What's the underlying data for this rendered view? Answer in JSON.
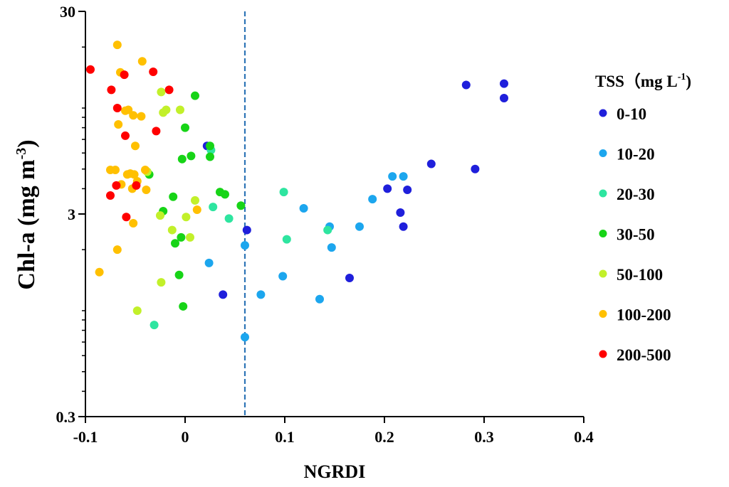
{
  "chart_data": {
    "type": "scatter",
    "title": "",
    "xlabel": "NGRDI",
    "ylabel_main": "Chl-a (mg m",
    "ylabel_sup": "-3",
    "ylabel_close": ")",
    "ylabel": "Chl-a (mg m-3)",
    "xlim": [
      -0.1,
      0.4
    ],
    "ylim": [
      0.3,
      30
    ],
    "yscale": "log",
    "x_ticks": [
      -0.1,
      0,
      0.1,
      0.2,
      0.3,
      0.4
    ],
    "x_tick_labels": [
      "-0.1",
      "0",
      "0.1",
      "0.2",
      "0.3",
      "0.4"
    ],
    "y_ticks": [
      0.3,
      3,
      30
    ],
    "y_tick_labels": [
      "0.3",
      "3",
      "30"
    ],
    "reference_line": {
      "x": 0.06,
      "style": "dashed",
      "color": "#2E75B6"
    },
    "legend": {
      "title_main": "TSS（mg L",
      "title_sup": "-1",
      "title_close": ")",
      "placement": "right"
    },
    "series": [
      {
        "name": "0-10",
        "color": "#1F1FDB",
        "points": [
          [
            0.022,
            6.5
          ],
          [
            0.062,
            2.5
          ],
          [
            0.038,
            1.2
          ],
          [
            0.165,
            1.45
          ],
          [
            0.203,
            4.0
          ],
          [
            0.216,
            3.05
          ],
          [
            0.219,
            2.6
          ],
          [
            0.223,
            3.95
          ],
          [
            0.247,
            5.3
          ],
          [
            0.282,
            13.0
          ],
          [
            0.291,
            5.0
          ],
          [
            0.32,
            13.2
          ],
          [
            0.32,
            11.2
          ]
        ]
      },
      {
        "name": "10-20",
        "color": "#1CA6EE",
        "points": [
          [
            0.06,
            2.1
          ],
          [
            0.06,
            0.74
          ],
          [
            0.024,
            1.72
          ],
          [
            0.076,
            1.2
          ],
          [
            0.098,
            1.48
          ],
          [
            0.119,
            3.2
          ],
          [
            0.135,
            1.14
          ],
          [
            0.145,
            2.6
          ],
          [
            0.147,
            2.05
          ],
          [
            0.175,
            2.6
          ],
          [
            0.188,
            3.55
          ],
          [
            0.208,
            4.6
          ],
          [
            0.219,
            4.6
          ]
        ]
      },
      {
        "name": "20-30",
        "color": "#2EE5A0",
        "points": [
          [
            -0.031,
            0.85
          ],
          [
            0.026,
            6.2
          ],
          [
            0.028,
            3.25
          ],
          [
            0.044,
            2.85
          ],
          [
            0.099,
            3.85
          ],
          [
            0.102,
            2.25
          ],
          [
            0.143,
            2.5
          ]
        ]
      },
      {
        "name": "30-50",
        "color": "#17D417",
        "points": [
          [
            -0.036,
            4.7
          ],
          [
            -0.022,
            3.1
          ],
          [
            -0.012,
            3.65
          ],
          [
            -0.01,
            2.15
          ],
          [
            -0.006,
            1.5
          ],
          [
            -0.004,
            2.3
          ],
          [
            -0.003,
            5.6
          ],
          [
            -0.002,
            1.05
          ],
          [
            0,
            8.0
          ],
          [
            0.006,
            5.8
          ],
          [
            0.01,
            11.5
          ],
          [
            0.025,
            6.5
          ],
          [
            0.025,
            5.75
          ],
          [
            0.035,
            3.85
          ],
          [
            0.04,
            3.75
          ],
          [
            0.056,
            3.3
          ]
        ]
      },
      {
        "name": "50-100",
        "color": "#C2F02A",
        "points": [
          [
            -0.048,
            1.0
          ],
          [
            -0.038,
            4.85
          ],
          [
            -0.025,
            2.95
          ],
          [
            -0.024,
            1.38
          ],
          [
            -0.024,
            12.0
          ],
          [
            -0.022,
            9.5
          ],
          [
            -0.019,
            9.8
          ],
          [
            -0.013,
            2.5
          ],
          [
            -0.005,
            9.8
          ],
          [
            0.001,
            2.9
          ],
          [
            0.005,
            2.3
          ],
          [
            0.01,
            3.5
          ]
        ]
      },
      {
        "name": "100-200",
        "color": "#FFC000",
        "points": [
          [
            -0.086,
            1.55
          ],
          [
            -0.075,
            4.95
          ],
          [
            -0.07,
            4.95
          ],
          [
            -0.068,
            20.5
          ],
          [
            -0.068,
            2.0
          ],
          [
            -0.067,
            8.3
          ],
          [
            -0.065,
            15.0
          ],
          [
            -0.064,
            4.2
          ],
          [
            -0.06,
            9.7
          ],
          [
            -0.058,
            4.7
          ],
          [
            -0.057,
            9.8
          ],
          [
            -0.055,
            4.75
          ],
          [
            -0.053,
            4.0
          ],
          [
            -0.052,
            2.7
          ],
          [
            -0.052,
            9.2
          ],
          [
            -0.051,
            4.7
          ],
          [
            -0.05,
            6.5
          ],
          [
            -0.048,
            4.35
          ],
          [
            -0.044,
            9.1
          ],
          [
            -0.043,
            17.0
          ],
          [
            -0.04,
            4.95
          ],
          [
            -0.039,
            3.95
          ],
          [
            0.012,
            3.15
          ]
        ]
      },
      {
        "name": "200-500",
        "color": "#FF0000",
        "points": [
          [
            -0.095,
            15.5
          ],
          [
            -0.075,
            3.7
          ],
          [
            -0.074,
            12.3
          ],
          [
            -0.069,
            4.15
          ],
          [
            -0.068,
            10.0
          ],
          [
            -0.061,
            14.6
          ],
          [
            -0.06,
            7.3
          ],
          [
            -0.059,
            2.9
          ],
          [
            -0.049,
            4.15
          ],
          [
            -0.032,
            15.1
          ],
          [
            -0.029,
            7.7
          ],
          [
            -0.016,
            12.3
          ]
        ]
      }
    ]
  }
}
